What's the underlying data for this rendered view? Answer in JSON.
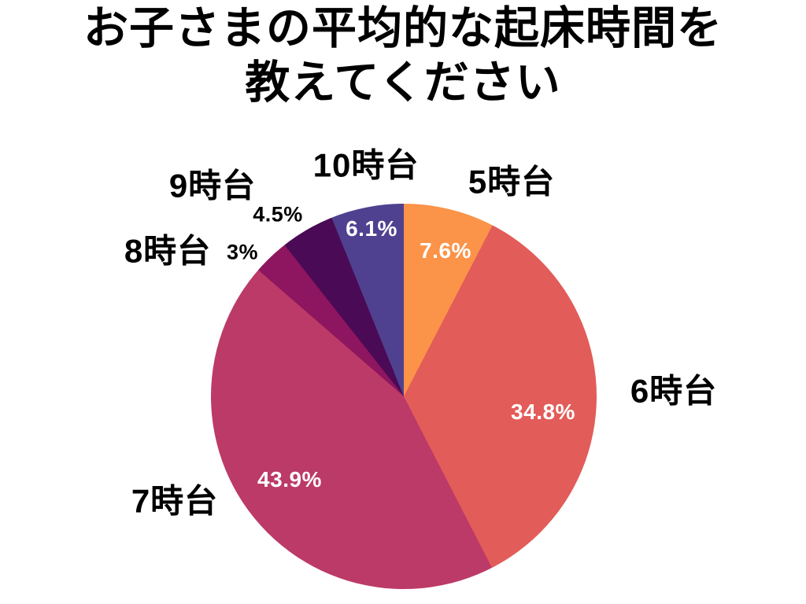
{
  "title": {
    "line1": "お子さまの平均的な起床時間を",
    "line2": "教えてください"
  },
  "chart_data": {
    "type": "pie",
    "title": "お子さまの平均的な起床時間を教えてください",
    "start_angle_deg": 0,
    "direction": "clockwise",
    "legend": "none",
    "background_color": "#ffffff",
    "slices": [
      {
        "label": "5時台",
        "value_pct": 7.6,
        "pct_label": "7.6%",
        "color": "#FB9349",
        "pct_label_placement": "inside",
        "pct_label_color": "#ffffff"
      },
      {
        "label": "6時台",
        "value_pct": 34.8,
        "pct_label": "34.8%",
        "color": "#E25C59",
        "pct_label_placement": "inside",
        "pct_label_color": "#ffffff"
      },
      {
        "label": "7時台",
        "value_pct": 43.9,
        "pct_label": "43.9%",
        "color": "#BC3A67",
        "pct_label_placement": "inside",
        "pct_label_color": "#ffffff"
      },
      {
        "label": "8時台",
        "value_pct": 3,
        "pct_label": "3%",
        "color": "#8E155F",
        "pct_label_placement": "outside",
        "pct_label_color": "#000000"
      },
      {
        "label": "9時台",
        "value_pct": 4.5,
        "pct_label": "4.5%",
        "color": "#4B0A55",
        "pct_label_placement": "outside",
        "pct_label_color": "#000000"
      },
      {
        "label": "10時台",
        "value_pct": 6.1,
        "pct_label": "6.1%",
        "color": "#4F4190",
        "pct_label_placement": "inside",
        "pct_label_color": "#ffffff"
      }
    ]
  }
}
